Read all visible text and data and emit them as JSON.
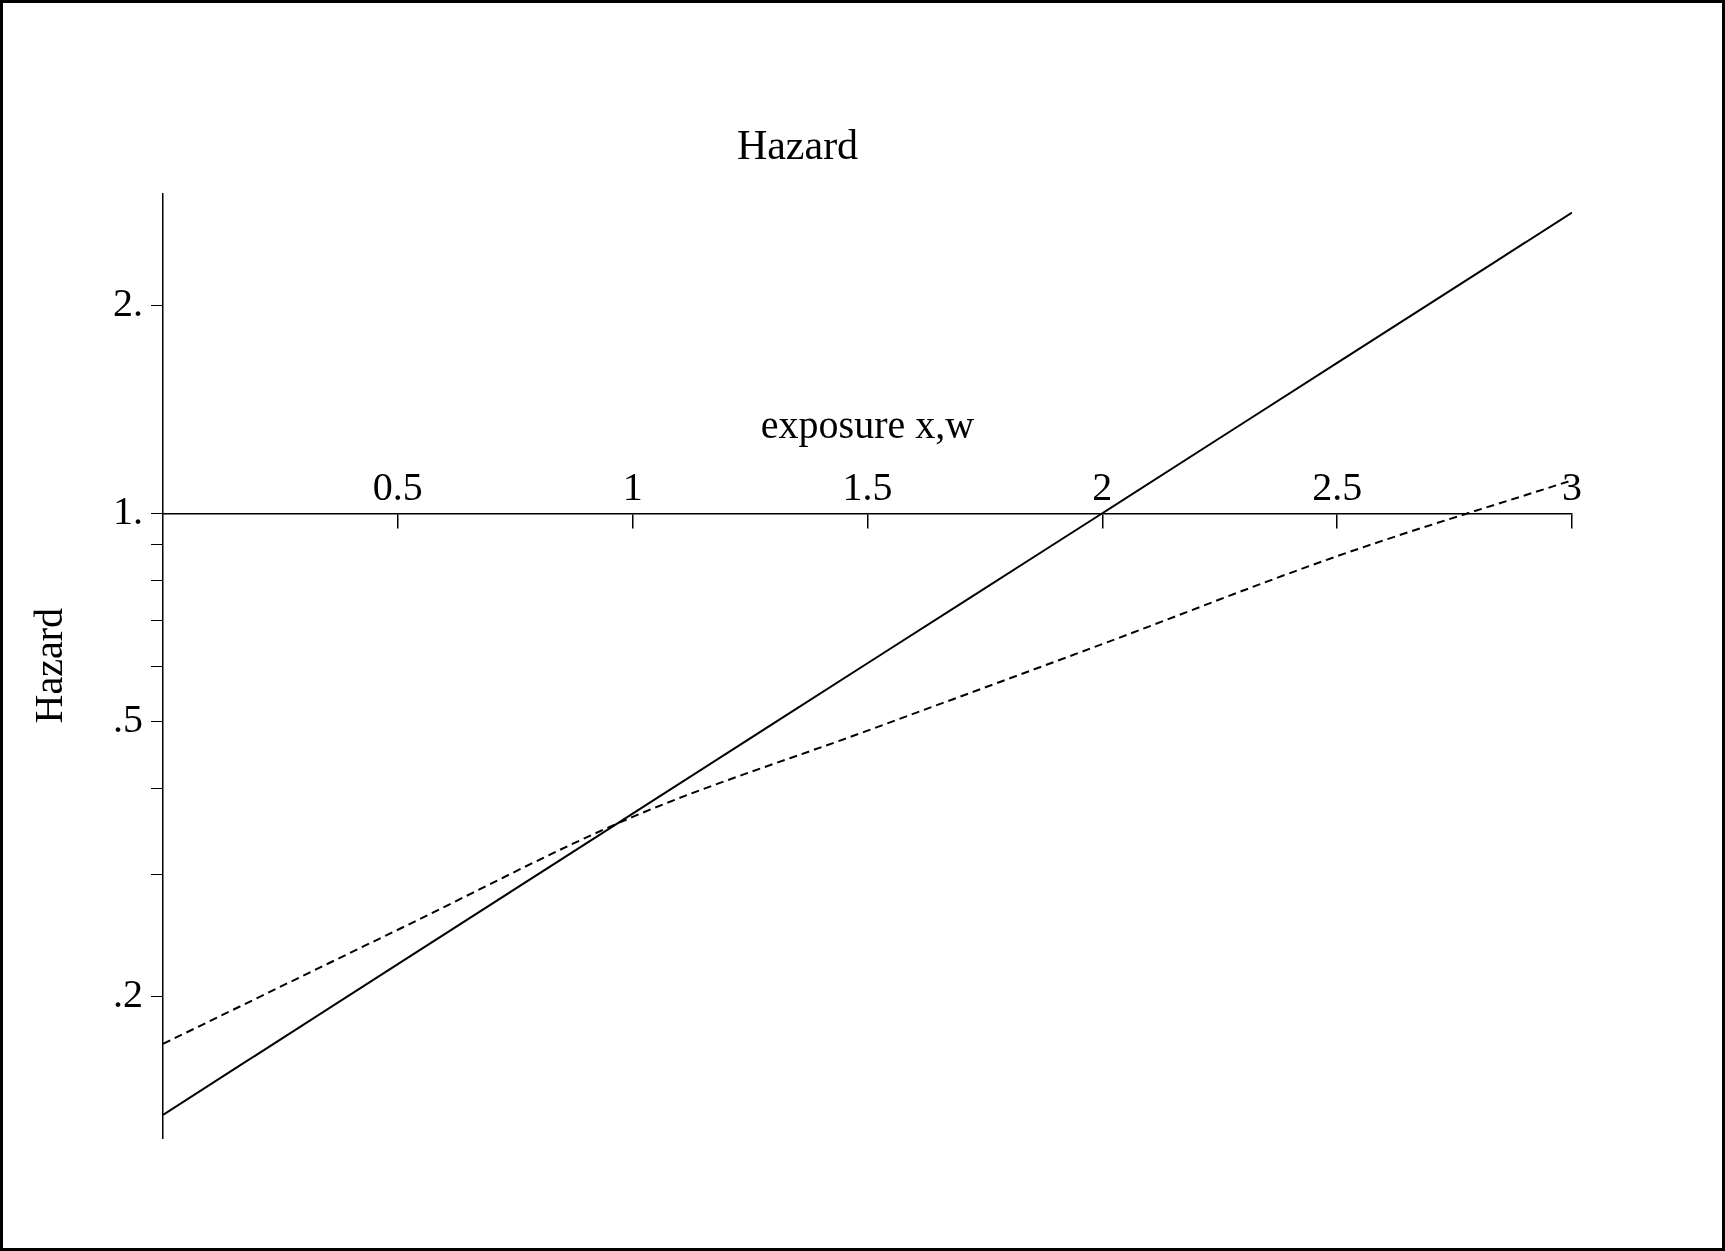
{
  "chart_data": {
    "type": "line",
    "title": "Hazard",
    "xlabel": "exposure x,w",
    "ylabel": "Hazard",
    "log": "y",
    "grid": false,
    "legend": false,
    "marker": "none",
    "xlim": [
      0,
      3
    ],
    "xticks": [
      0.5,
      1,
      1.5,
      2,
      2.5,
      3
    ],
    "ylim": [
      0.125,
      2.9
    ],
    "yticks": [
      {
        "value": 0.2,
        "label": ".2"
      },
      {
        "value": 0.3,
        "label": null
      },
      {
        "value": 0.4,
        "label": null
      },
      {
        "value": 0.5,
        "label": ".5"
      },
      {
        "value": 0.6,
        "label": null
      },
      {
        "value": 0.7,
        "label": null
      },
      {
        "value": 0.8,
        "label": null
      },
      {
        "value": 0.9,
        "label": null
      },
      {
        "value": 1,
        "label": "1."
      },
      {
        "value": 2,
        "label": "2."
      }
    ],
    "x": [
      0,
      0.5,
      1,
      1.5,
      2,
      2.5,
      3
    ],
    "series": [
      {
        "color": "#000000",
        "line_style": "solid",
        "values": [
          0.135,
          0.223,
          0.368,
          0.607,
          1,
          1.65,
          2.72
        ]
      },
      {
        "color": "#000000",
        "line_style": "dashed",
        "values": [
          0.171,
          0.25,
          0.364,
          0.485,
          0.647,
          0.867,
          1.116
        ]
      }
    ]
  }
}
